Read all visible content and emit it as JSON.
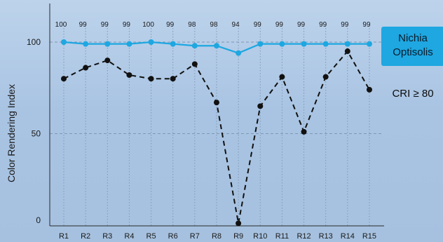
{
  "chart_data": {
    "type": "line",
    "ylabel": "Color Rendering Index",
    "ylim": [
      0,
      130
    ],
    "yticks": [
      0,
      50,
      100
    ],
    "categories": [
      "R1",
      "R2",
      "R3",
      "R4",
      "R5",
      "R6",
      "R7",
      "R8",
      "R9",
      "R10",
      "R11",
      "R12",
      "R13",
      "R14",
      "R15"
    ],
    "grid": true,
    "series": [
      {
        "name": "Nichia Optisolis",
        "name_lines": [
          "Nichia",
          "Optisolis"
        ],
        "color": "#1ea7e1",
        "style": "solid",
        "values": [
          100,
          99,
          99,
          99,
          100,
          99,
          98,
          98,
          94,
          99,
          99,
          99,
          99,
          99,
          99
        ],
        "top_labels": [
          "100",
          "99",
          "99",
          "99",
          "100",
          "99",
          "98",
          "98",
          "94",
          "99",
          "99",
          "99",
          "99",
          "99",
          "99"
        ]
      },
      {
        "name": "CRI ≥ 80",
        "color": "#111111",
        "style": "dashed",
        "values": [
          80,
          86,
          90,
          82,
          80,
          80,
          88,
          67,
          1,
          65,
          81,
          51,
          81,
          95,
          74
        ]
      }
    ],
    "legend_placement": "right"
  }
}
